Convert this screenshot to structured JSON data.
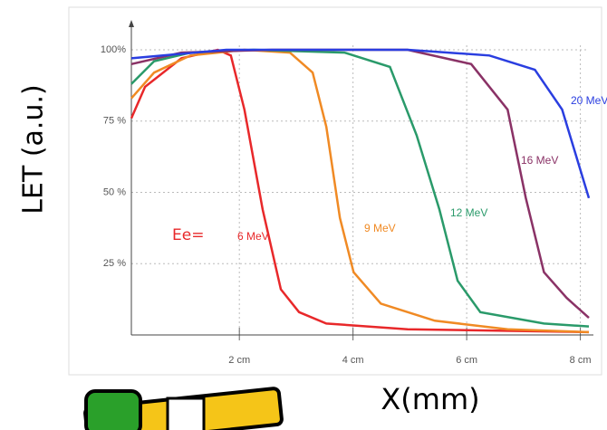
{
  "chart_data": {
    "type": "line",
    "y_label": "LET (a.u.)",
    "x_label": "X(mm)",
    "annotation": "Ee=",
    "annotation_color": "#e8282a",
    "xlim": [
      0.1,
      8.15
    ],
    "ylim": [
      0,
      100
    ],
    "xticks": [
      {
        "value": 2,
        "label": "2 cm"
      },
      {
        "value": 4,
        "label": "4 cm"
      },
      {
        "value": 6,
        "label": "6 cm"
      },
      {
        "value": 8,
        "label": "8 cm"
      }
    ],
    "yticks": [
      {
        "value": 25,
        "label": "25 %"
      },
      {
        "value": 50,
        "label": "50 %"
      },
      {
        "value": 75,
        "label": "75 %"
      },
      {
        "value": 100,
        "label": "100%"
      }
    ],
    "grid": true,
    "series": [
      {
        "name": "6 MeV",
        "color": "#e8282a",
        "x": [
          0.1,
          0.34,
          0.98,
          1.62,
          1.85,
          2.09,
          2.41,
          2.73,
          3.05,
          3.53,
          4.96,
          8.15
        ],
        "values": [
          76,
          87,
          97,
          100,
          98,
          79,
          44,
          16,
          8,
          4,
          2,
          1
        ]
      },
      {
        "name": "9 MeV",
        "color": "#f08a24",
        "x": [
          0.1,
          0.5,
          1.14,
          2.09,
          2.89,
          3.29,
          3.53,
          3.77,
          4.01,
          4.49,
          5.44,
          6.72,
          8.15
        ],
        "values": [
          83,
          92,
          98,
          100,
          99,
          92,
          73,
          41,
          22,
          11,
          5,
          2,
          1
        ]
      },
      {
        "name": "12 MeV",
        "color": "#2a9a6a",
        "x": [
          0.1,
          0.5,
          1.14,
          2.25,
          3.85,
          4.65,
          5.12,
          5.52,
          5.84,
          6.24,
          7.36,
          8.15
        ],
        "values": [
          88,
          96,
          99,
          100,
          99,
          94,
          70,
          44,
          19,
          8,
          4,
          3
        ]
      },
      {
        "name": "16 MeV",
        "color": "#8a3266",
        "x": [
          0.1,
          0.98,
          2.57,
          4.96,
          6.08,
          6.72,
          7.04,
          7.36,
          7.76,
          8.15
        ],
        "values": [
          95,
          99,
          100,
          100,
          95,
          79,
          48,
          22,
          13,
          6
        ]
      },
      {
        "name": "20 MeV",
        "color": "#2a3ee0",
        "x": [
          0.1,
          1.77,
          4.96,
          6.4,
          7.2,
          7.68,
          8.15
        ],
        "values": [
          97,
          100,
          100,
          98,
          93,
          79,
          48
        ]
      }
    ]
  }
}
